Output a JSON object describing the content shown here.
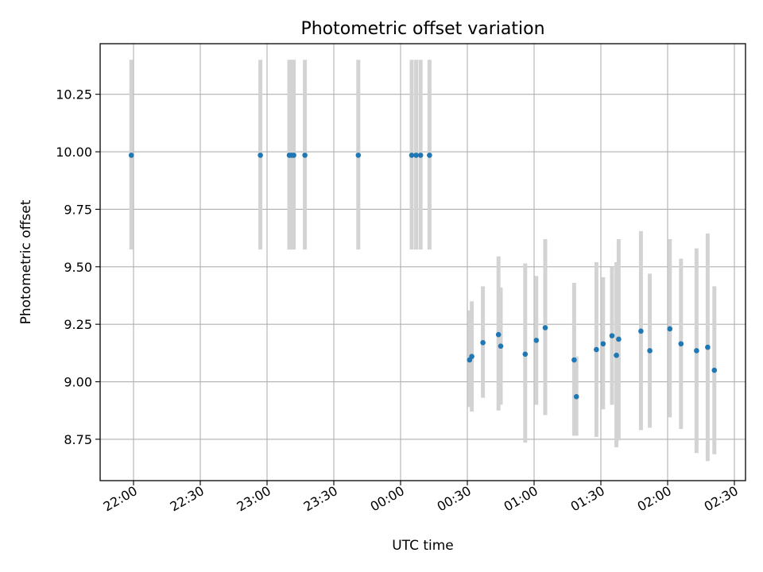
{
  "chart_data": {
    "type": "scatter",
    "title": "Photometric offset variation",
    "xlabel": "UTC time",
    "ylabel": "Photometric offset",
    "grid": true,
    "point_color": "#1f77b4",
    "errorbar_color": "#d3d3d3",
    "xlim": [
      "21:45",
      "02:35"
    ],
    "ylim": [
      8.57,
      10.47
    ],
    "x_ticks": [
      "22:00",
      "22:30",
      "23:00",
      "23:30",
      "00:00",
      "00:30",
      "01:00",
      "01:30",
      "02:00",
      "02:30"
    ],
    "y_ticks": [
      "8.75",
      "9.00",
      "9.25",
      "9.50",
      "9.75",
      "10.00",
      "10.25"
    ],
    "points": [
      {
        "x": "21:59",
        "y": 9.985,
        "lo": 9.575,
        "hi": 10.4
      },
      {
        "x": "22:57",
        "y": 9.985,
        "lo": 9.575,
        "hi": 10.4
      },
      {
        "x": "23:10",
        "y": 9.985,
        "lo": 9.575,
        "hi": 10.4
      },
      {
        "x": "23:11",
        "y": 9.985,
        "lo": 9.575,
        "hi": 10.4
      },
      {
        "x": "23:12",
        "y": 9.985,
        "lo": 9.575,
        "hi": 10.4
      },
      {
        "x": "23:17",
        "y": 9.985,
        "lo": 9.575,
        "hi": 10.4
      },
      {
        "x": "23:41",
        "y": 9.985,
        "lo": 9.575,
        "hi": 10.4
      },
      {
        "x": "00:05",
        "y": 9.985,
        "lo": 9.575,
        "hi": 10.4
      },
      {
        "x": "00:07",
        "y": 9.985,
        "lo": 9.575,
        "hi": 10.4
      },
      {
        "x": "00:09",
        "y": 9.985,
        "lo": 9.575,
        "hi": 10.4
      },
      {
        "x": "00:13",
        "y": 9.985,
        "lo": 9.575,
        "hi": 10.4
      },
      {
        "x": "00:31",
        "y": 9.095,
        "lo": 8.89,
        "hi": 9.31
      },
      {
        "x": "00:32",
        "y": 9.11,
        "lo": 8.87,
        "hi": 9.35
      },
      {
        "x": "00:37",
        "y": 9.17,
        "lo": 8.93,
        "hi": 9.415
      },
      {
        "x": "00:44",
        "y": 9.205,
        "lo": 8.875,
        "hi": 9.545
      },
      {
        "x": "00:45",
        "y": 9.155,
        "lo": 8.9,
        "hi": 9.41
      },
      {
        "x": "00:56",
        "y": 9.12,
        "lo": 8.735,
        "hi": 9.515
      },
      {
        "x": "01:01",
        "y": 9.18,
        "lo": 8.9,
        "hi": 9.46
      },
      {
        "x": "01:05",
        "y": 9.235,
        "lo": 8.855,
        "hi": 9.62
      },
      {
        "x": "01:18",
        "y": 9.095,
        "lo": 8.765,
        "hi": 9.43
      },
      {
        "x": "01:19",
        "y": 8.935,
        "lo": 8.765,
        "hi": 9.11
      },
      {
        "x": "01:28",
        "y": 9.14,
        "lo": 8.76,
        "hi": 9.52
      },
      {
        "x": "01:31",
        "y": 9.165,
        "lo": 8.88,
        "hi": 9.455
      },
      {
        "x": "01:35",
        "y": 9.2,
        "lo": 8.9,
        "hi": 9.5
      },
      {
        "x": "01:37",
        "y": 9.115,
        "lo": 8.715,
        "hi": 9.52
      },
      {
        "x": "01:38",
        "y": 9.185,
        "lo": 8.745,
        "hi": 9.62
      },
      {
        "x": "01:48",
        "y": 9.22,
        "lo": 8.79,
        "hi": 9.655
      },
      {
        "x": "01:52",
        "y": 9.135,
        "lo": 8.8,
        "hi": 9.47
      },
      {
        "x": "02:01",
        "y": 9.23,
        "lo": 8.845,
        "hi": 9.62
      },
      {
        "x": "02:06",
        "y": 9.165,
        "lo": 8.795,
        "hi": 9.535
      },
      {
        "x": "02:13",
        "y": 9.135,
        "lo": 8.69,
        "hi": 9.58
      },
      {
        "x": "02:18",
        "y": 9.15,
        "lo": 8.655,
        "hi": 9.645
      },
      {
        "x": "02:21",
        "y": 9.05,
        "lo": 8.685,
        "hi": 9.415
      }
    ]
  }
}
